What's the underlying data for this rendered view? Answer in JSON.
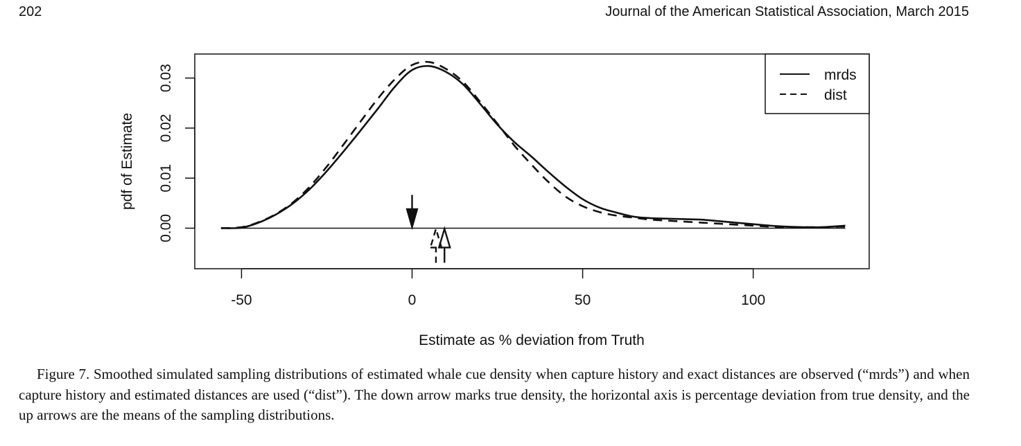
{
  "page": {
    "page_number": "202",
    "journal_header": "Journal of the American Statistical Association, March 2015"
  },
  "caption": "Figure 7.  Smoothed simulated sampling distributions of estimated whale cue density when capture history and exact distances are observed (“mrds”) and when capture history and estimated distances are used (“dist”). The down arrow marks true density, the horizontal axis is percentage deviation from true density, and the up arrows are the means of the sampling distributions.",
  "chart_data": {
    "type": "line",
    "title": "",
    "xlabel": "Estimate as % deviation from Truth",
    "ylabel": "pdf of Estimate",
    "xlim": [
      -63.7,
      134.0
    ],
    "ylim": [
      -0.0081,
      0.0348
    ],
    "x_ticks": [
      -50,
      0,
      50,
      100
    ],
    "x_tick_labels": [
      "-50",
      "0",
      "50",
      "100"
    ],
    "y_ticks": [
      0.0,
      0.01,
      0.02,
      0.03
    ],
    "y_tick_labels": [
      "0.00",
      "0.01",
      "0.02",
      "0.03"
    ],
    "grid": false,
    "legend": {
      "position": "top-right"
    },
    "series": [
      {
        "name": "mrds",
        "line_style": "solid",
        "x": [
          -56,
          -50,
          -45,
          -40,
          -35,
          -30,
          -25,
          -20,
          -15,
          -10,
          -5,
          0,
          5,
          10,
          15,
          20,
          25,
          30,
          35,
          40,
          45,
          50,
          55,
          60,
          65,
          70,
          75,
          80,
          85,
          90,
          95,
          100,
          105,
          110,
          115,
          120,
          125,
          127
        ],
        "y": [
          0.0,
          0.0001,
          0.0011,
          0.0027,
          0.0049,
          0.0078,
          0.0114,
          0.0154,
          0.0196,
          0.0239,
          0.0283,
          0.0316,
          0.0324,
          0.0312,
          0.0287,
          0.0248,
          0.0207,
          0.0172,
          0.0143,
          0.0112,
          0.0083,
          0.0058,
          0.0041,
          0.0031,
          0.0023,
          0.002,
          0.0019,
          0.0018,
          0.0017,
          0.0014,
          0.0011,
          0.0008,
          0.0005,
          0.0003,
          0.0002,
          0.0002,
          0.0004,
          0.0005
        ]
      },
      {
        "name": "dist",
        "line_style": "dashed",
        "x": [
          -56,
          -50,
          -45,
          -40,
          -35,
          -30,
          -25,
          -20,
          -15,
          -10,
          -5,
          0,
          5,
          10,
          15,
          20,
          25,
          30,
          35,
          40,
          45,
          50,
          55,
          60,
          65,
          70,
          75,
          80,
          85,
          90,
          95,
          100,
          105,
          110,
          115,
          120,
          125,
          127
        ],
        "y": [
          0.0,
          0.0002,
          0.0012,
          0.0028,
          0.0051,
          0.0083,
          0.0123,
          0.0168,
          0.0214,
          0.0259,
          0.0298,
          0.0326,
          0.0332,
          0.0318,
          0.0292,
          0.0252,
          0.0209,
          0.0165,
          0.0127,
          0.0092,
          0.0063,
          0.0044,
          0.0032,
          0.0025,
          0.0021,
          0.0017,
          0.0015,
          0.0013,
          0.0011,
          0.0009,
          0.0007,
          0.0005,
          0.0003,
          0.0002,
          0.0002,
          0.0002,
          0.0003,
          0.0003
        ]
      }
    ],
    "arrows": [
      {
        "series": "true density",
        "direction": "down",
        "x": 0,
        "line_style": "solid"
      },
      {
        "series": "mrds",
        "direction": "up",
        "x": 9.5,
        "line_style": "solid"
      },
      {
        "series": "dist",
        "direction": "up",
        "x": 7.0,
        "line_style": "dashed"
      }
    ]
  }
}
